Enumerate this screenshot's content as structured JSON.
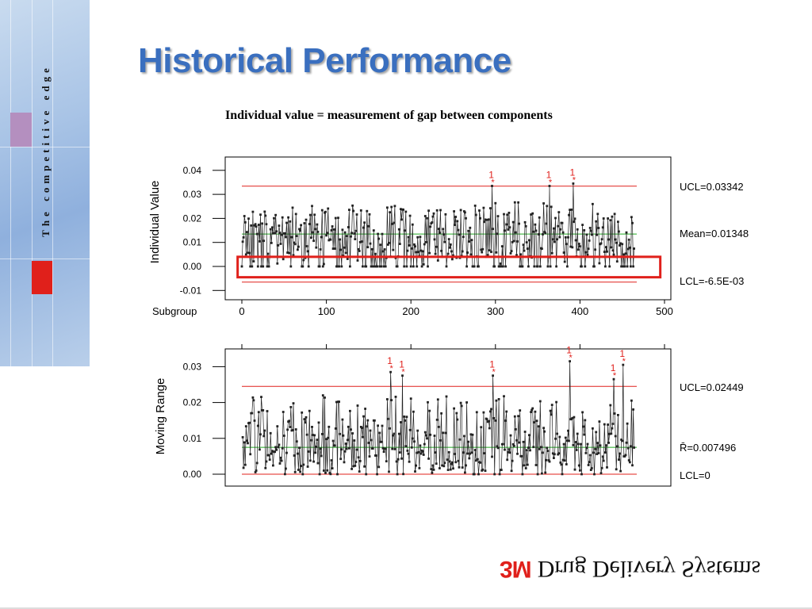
{
  "slide": {
    "title": "Historical Performance",
    "tagline": "The competitive edge",
    "caption": "Individual value = measurement of gap between components",
    "brand_logo": "3M",
    "brand_name": "Drug Delivery Systems"
  },
  "colors": {
    "title": "#3a6fbf",
    "control_limit": "#e0201b",
    "center_line": "#22aa22",
    "highlight_box": "#e0201b",
    "points": "#222222"
  },
  "chart_data": [
    {
      "type": "line",
      "title": "",
      "xlabel": "Subgroup",
      "ylabel": "Individual Value",
      "xlim": [
        0,
        500
      ],
      "ylim": [
        -0.01,
        0.04
      ],
      "x_ticks": [
        "0",
        "100",
        "200",
        "300",
        "400",
        "500"
      ],
      "y_ticks": [
        "0.04",
        "0.03",
        "0.02",
        "0.01",
        "0.00",
        "-0.01"
      ],
      "n_points": 465,
      "reference_lines": [
        {
          "label": "UCL=0.03342",
          "value": 0.03342,
          "color": "#e0201b"
        },
        {
          "label": "Mean=0.01348",
          "value": 0.01348,
          "color": "#22aa22"
        },
        {
          "label": "LCL=-6.5E-03",
          "value": -0.0065,
          "color": "#e0201b"
        }
      ],
      "out_of_control_flags": [
        {
          "x": 296,
          "value": 0.0335,
          "label": "1"
        },
        {
          "x": 364,
          "value": 0.0335,
          "label": "1"
        },
        {
          "x": 392,
          "value": 0.0345,
          "label": "1"
        }
      ],
      "highlight_region": {
        "x": [
          -5,
          495
        ],
        "y": [
          -0.0045,
          0.004
        ]
      }
    },
    {
      "type": "line",
      "title": "",
      "xlabel": "",
      "ylabel": "Moving Range",
      "xlim": [
        0,
        500
      ],
      "ylim": [
        0,
        0.035
      ],
      "y_ticks": [
        "0.03",
        "0.02",
        "0.01",
        "0.00"
      ],
      "n_points": 464,
      "reference_lines": [
        {
          "label": "UCL=0.02449",
          "value": 0.02449,
          "color": "#e0201b"
        },
        {
          "label": "R̄=0.007496",
          "value": 0.007496,
          "color": "#22aa22"
        },
        {
          "label": "LCL=0",
          "value": 0,
          "color": "#e0201b"
        }
      ],
      "out_of_control_flags": [
        {
          "x": 176,
          "value": 0.0285,
          "label": "1"
        },
        {
          "x": 190,
          "value": 0.0275,
          "label": "1"
        },
        {
          "x": 297,
          "value": 0.0275,
          "label": "1"
        },
        {
          "x": 388,
          "value": 0.0315,
          "label": "1"
        },
        {
          "x": 440,
          "value": 0.0265,
          "label": "1"
        },
        {
          "x": 451,
          "value": 0.0305,
          "label": "1"
        }
      ]
    }
  ]
}
